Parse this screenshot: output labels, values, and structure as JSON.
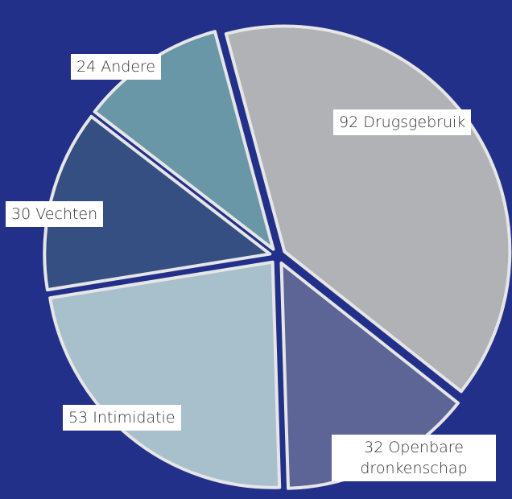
{
  "chart_data": {
    "type": "pie",
    "categories": [
      "Drugsgebruik",
      "Openbare dronkenschap",
      "Intimidatie",
      "Vechten",
      "Andere"
    ],
    "values": [
      92,
      32,
      53,
      30,
      24
    ],
    "colors": [
      "#b0b2b5",
      "#5d6496",
      "#a8bfcc",
      "#364f82",
      "#6a97a8"
    ]
  }
}
